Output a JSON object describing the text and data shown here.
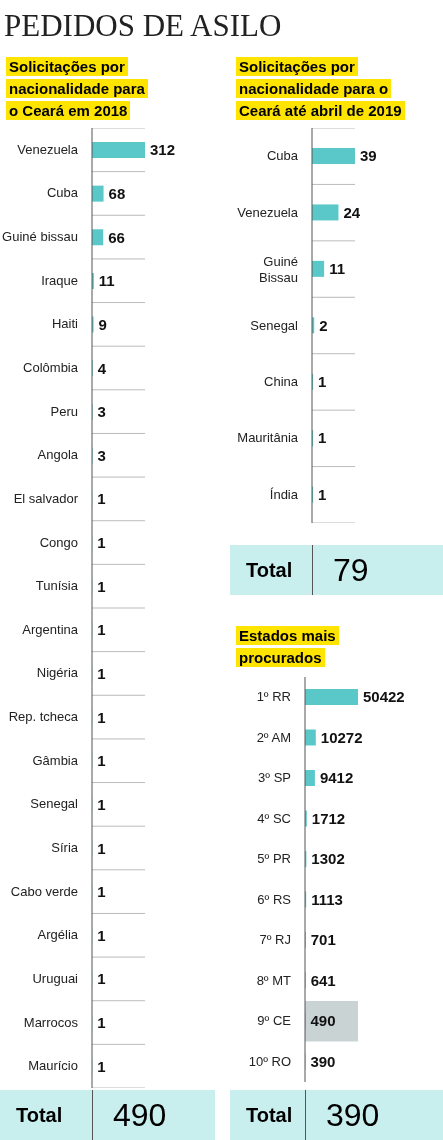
{
  "chart_data": [
    {
      "type": "bar",
      "orientation": "horizontal",
      "title": "PEDIDOS DE ASILO",
      "subtitle": "Solicitações por nacionalidade para o Ceará em 2018",
      "categories": [
        "Venezuela",
        "Cuba",
        "Guiné bissau",
        "Iraque",
        "Haiti",
        "Colômbia",
        "Peru",
        "Angola",
        "El salvador",
        "Congo",
        "Tunísia",
        "Argentina",
        "Nigéria",
        "Rep. tcheca",
        "Gâmbia",
        "Senegal",
        "Síria",
        "Cabo verde",
        "Argélia",
        "Uruguai",
        "Marrocos",
        "Maurício"
      ],
      "values": [
        312,
        68,
        66,
        11,
        9,
        4,
        3,
        3,
        1,
        1,
        1,
        1,
        1,
        1,
        1,
        1,
        1,
        1,
        1,
        1,
        1,
        1
      ],
      "color": "#5ac8c8",
      "data_labels": true,
      "grid": "y",
      "annotations": [
        "Total",
        "490"
      ]
    },
    {
      "type": "bar",
      "orientation": "horizontal",
      "subtitle": "Solicitações por nacionalidade para o Ceará até abril de 2019",
      "categories": [
        "Cuba",
        "Venezuela",
        "Guiné Bissau",
        "Senegal",
        "China",
        "Mauritânia",
        "Índia"
      ],
      "values": [
        39,
        24,
        11,
        2,
        1,
        1,
        1
      ],
      "color": "#5ac8c8",
      "data_labels": true,
      "grid": "y",
      "annotations": [
        "Total",
        "79"
      ]
    },
    {
      "type": "bar",
      "orientation": "horizontal",
      "subtitle": "Estados mais procurados",
      "categories": [
        "1º RR",
        "2º AM",
        "3º SP",
        "4º SC",
        "5º PR",
        "6º RS",
        "7º RJ",
        "8º MT",
        "9º CE",
        "10º RO"
      ],
      "values": [
        50422,
        10272,
        9412,
        1712,
        1302,
        1113,
        701,
        641,
        490,
        390
      ],
      "color": "#5ac8c8",
      "data_labels": true,
      "bands": [
        {
          "axis": "y",
          "from": "9º CE",
          "to": "9º CE",
          "color": "#c9d3d3"
        }
      ],
      "annotations": [
        "Total",
        "390"
      ]
    }
  ]
}
